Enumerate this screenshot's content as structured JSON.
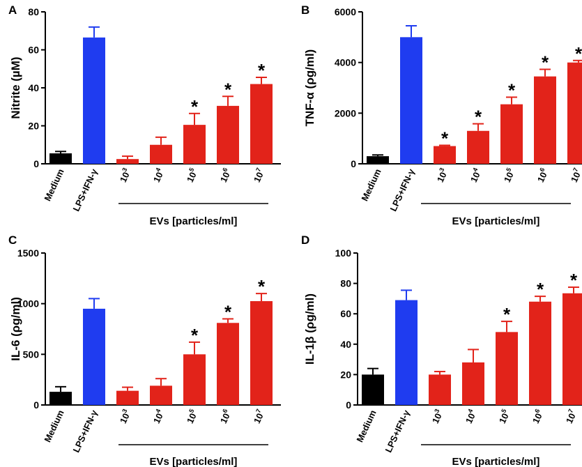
{
  "figure": {
    "background": "#ffffff"
  },
  "chart_data": [
    {
      "panel": "A",
      "type": "bar",
      "ylabel": "Nitrite (µM)",
      "ylim": [
        0,
        80
      ],
      "yticks": [
        "0",
        "20",
        "40",
        "60",
        "80"
      ],
      "categories": [
        "Medium",
        "LPS+IFN-γ",
        "10",
        "10",
        "10",
        "10",
        "10"
      ],
      "exponents": [
        "",
        "",
        "3",
        "4",
        "5",
        "6",
        "7"
      ],
      "values": [
        5.5,
        66.5,
        2.5,
        10,
        20.5,
        30.5,
        42
      ],
      "errors": [
        1,
        5.5,
        1.5,
        4,
        6,
        5,
        3.5
      ],
      "significant": [
        false,
        false,
        false,
        false,
        true,
        true,
        true
      ],
      "star": "*",
      "colors": [
        "#000000",
        "#1f3cf0",
        "#e2231a",
        "#e2231a",
        "#e2231a",
        "#e2231a",
        "#e2231a"
      ],
      "group_label": "EVs [particles/ml]"
    },
    {
      "panel": "B",
      "type": "bar",
      "ylabel": "TNF-α (ρg/ml)",
      "ylim": [
        0,
        6000
      ],
      "yticks": [
        "0",
        "2000",
        "4000",
        "6000"
      ],
      "categories": [
        "Medium",
        "LPS+IFN-γ",
        "10",
        "10",
        "10",
        "10",
        "10"
      ],
      "exponents": [
        "",
        "",
        "3",
        "4",
        "5",
        "6",
        "7"
      ],
      "values": [
        300,
        5000,
        700,
        1300,
        2350,
        3450,
        4000
      ],
      "errors": [
        50,
        450,
        30,
        280,
        280,
        280,
        80
      ],
      "significant": [
        false,
        false,
        true,
        true,
        true,
        true,
        true
      ],
      "star": "*",
      "colors": [
        "#000000",
        "#1f3cf0",
        "#e2231a",
        "#e2231a",
        "#e2231a",
        "#e2231a",
        "#e2231a"
      ],
      "group_label": "EVs [particles/ml]"
    },
    {
      "panel": "C",
      "type": "bar",
      "ylabel": "IL-6 (ρg/ml)",
      "ylim": [
        0,
        1500
      ],
      "yticks": [
        "0",
        "500",
        "1000",
        "1500"
      ],
      "categories": [
        "Medium",
        "LPS+IFN-γ",
        "10",
        "10",
        "10",
        "10",
        "10"
      ],
      "exponents": [
        "",
        "",
        "3",
        "4",
        "5",
        "6",
        "7"
      ],
      "values": [
        130,
        950,
        140,
        190,
        500,
        810,
        1025
      ],
      "errors": [
        50,
        100,
        35,
        70,
        120,
        40,
        75
      ],
      "significant": [
        false,
        false,
        false,
        false,
        true,
        true,
        true
      ],
      "star": "*",
      "colors": [
        "#000000",
        "#1f3cf0",
        "#e2231a",
        "#e2231a",
        "#e2231a",
        "#e2231a",
        "#e2231a"
      ],
      "group_label": "EVs [particles/ml]"
    },
    {
      "panel": "D",
      "type": "bar",
      "ylabel": "IL-1β (ρg/ml)",
      "ylim": [
        0,
        100
      ],
      "yticks": [
        "0",
        "20",
        "40",
        "60",
        "80",
        "100"
      ],
      "categories": [
        "Medium",
        "LPS+IFN-γ",
        "10",
        "10",
        "10",
        "10",
        "10"
      ],
      "exponents": [
        "",
        "",
        "3",
        "4",
        "5",
        "6",
        "7"
      ],
      "values": [
        20,
        69,
        20,
        28,
        48,
        68,
        73.5
      ],
      "errors": [
        4,
        6.5,
        2,
        8.5,
        7,
        3.5,
        4
      ],
      "significant": [
        false,
        false,
        false,
        false,
        true,
        true,
        true
      ],
      "star": "*",
      "colors": [
        "#000000",
        "#1f3cf0",
        "#e2231a",
        "#e2231a",
        "#e2231a",
        "#e2231a",
        "#e2231a"
      ],
      "group_label": "EVs [particles/ml]"
    }
  ]
}
